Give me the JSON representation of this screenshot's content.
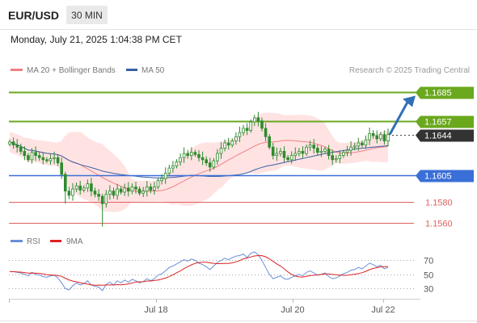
{
  "header": {
    "symbol": "EUR/USD",
    "timeframe": "30 MIN",
    "datetime": "Monday, July 21, 2025 1:04:38 PM CET"
  },
  "legend": {
    "ma20_bb": "MA 20 + Bollinger Bands",
    "ma50": "MA 50",
    "credit": "Research © 2025 Trading Central"
  },
  "rsi_legend": {
    "rsi": "RSI",
    "ma9": "9MA"
  },
  "colors": {
    "candle": "#2e8b2e",
    "bollinger_fill": "#ffd9d9",
    "ma20": "#f08080",
    "ma50": "#3a5fa5",
    "target": "#6aa81e",
    "pivot": "#3a6fd8",
    "support": "#e06060",
    "arrow": "#2f6fb8",
    "rsi": "#6a8fd8",
    "rsi_ma": "#dd2222",
    "last_price_tag": "#333333"
  },
  "chart_data": [
    {
      "type": "candlestick",
      "title": "EUR/USD",
      "timeframe": "30 MIN",
      "ylim": [
        1.1555,
        1.1697
      ],
      "x_ticks": [
        "Jul 18",
        "Jul 20",
        "Jul 22"
      ],
      "series": [
        {
          "name": "MA 20 + Bollinger Bands"
        },
        {
          "name": "MA 50"
        }
      ],
      "levels": [
        {
          "value": "1.1685",
          "kind": "target"
        },
        {
          "value": "1.1657",
          "kind": "target"
        },
        {
          "value": "1.1644",
          "kind": "last"
        },
        {
          "value": "1.1605",
          "kind": "pivot"
        },
        {
          "value": "1.1580",
          "kind": "support"
        },
        {
          "value": "1.1560",
          "kind": "support"
        }
      ],
      "last_price": 1.1644,
      "close": [
        1.1637,
        1.1634,
        1.1632,
        1.1628,
        1.1624,
        1.162,
        1.1627,
        1.1624,
        1.1622,
        1.162,
        1.1619,
        1.1621,
        1.1622,
        1.1617,
        1.1606,
        1.159,
        1.1586,
        1.1592,
        1.1595,
        1.1591,
        1.1593,
        1.1597,
        1.159,
        1.1587,
        1.1585,
        1.1578,
        1.1587,
        1.159,
        1.1586,
        1.1592,
        1.1589,
        1.1593,
        1.159,
        1.1594,
        1.1592,
        1.1588,
        1.159,
        1.1594,
        1.1591,
        1.1594,
        1.16,
        1.1602,
        1.1607,
        1.1612,
        1.1614,
        1.1618,
        1.1622,
        1.1626,
        1.1624,
        1.1627,
        1.1625,
        1.1622,
        1.162,
        1.1617,
        1.1613,
        1.1619,
        1.1626,
        1.1631,
        1.1636,
        1.1634,
        1.1638,
        1.1642,
        1.1646,
        1.165,
        1.1648,
        1.1656,
        1.166,
        1.1657,
        1.165,
        1.1642,
        1.1632,
        1.1624,
        1.1626,
        1.1628,
        1.1622,
        1.162,
        1.1624,
        1.1626,
        1.1628,
        1.1626,
        1.1632,
        1.1634,
        1.1631,
        1.1627,
        1.1628,
        1.163,
        1.1624,
        1.162,
        1.1621,
        1.1624,
        1.1627,
        1.1629,
        1.1632,
        1.1633,
        1.1636,
        1.1634,
        1.1639,
        1.1645,
        1.1643,
        1.164,
        1.1644,
        1.1638,
        1.1644
      ],
      "rsi": {
        "series": [
          "RSI",
          "9MA"
        ],
        "ticks": [
          "70",
          "50",
          "30"
        ],
        "ylim": [
          20,
          82
        ],
        "values": [
          54,
          54,
          53,
          52,
          50,
          48,
          53,
          50,
          49,
          47,
          46,
          48,
          49,
          45,
          38,
          30,
          28,
          34,
          38,
          35,
          37,
          41,
          35,
          33,
          32,
          27,
          36,
          39,
          35,
          41,
          38,
          42,
          39,
          43,
          41,
          38,
          40,
          44,
          41,
          44,
          49,
          51,
          55,
          60,
          62,
          65,
          68,
          71,
          69,
          72,
          70,
          66,
          64,
          61,
          57,
          62,
          67,
          70,
          73,
          71,
          74,
          76,
          77,
          79,
          74,
          80,
          82,
          78,
          70,
          60,
          50,
          44,
          46,
          48,
          44,
          43,
          46,
          48,
          50,
          48,
          53,
          55,
          52,
          49,
          50,
          52,
          47,
          44,
          45,
          48,
          51,
          53,
          56,
          57,
          60,
          58,
          62,
          66,
          64,
          61,
          63,
          58,
          60
        ]
      }
    }
  ]
}
